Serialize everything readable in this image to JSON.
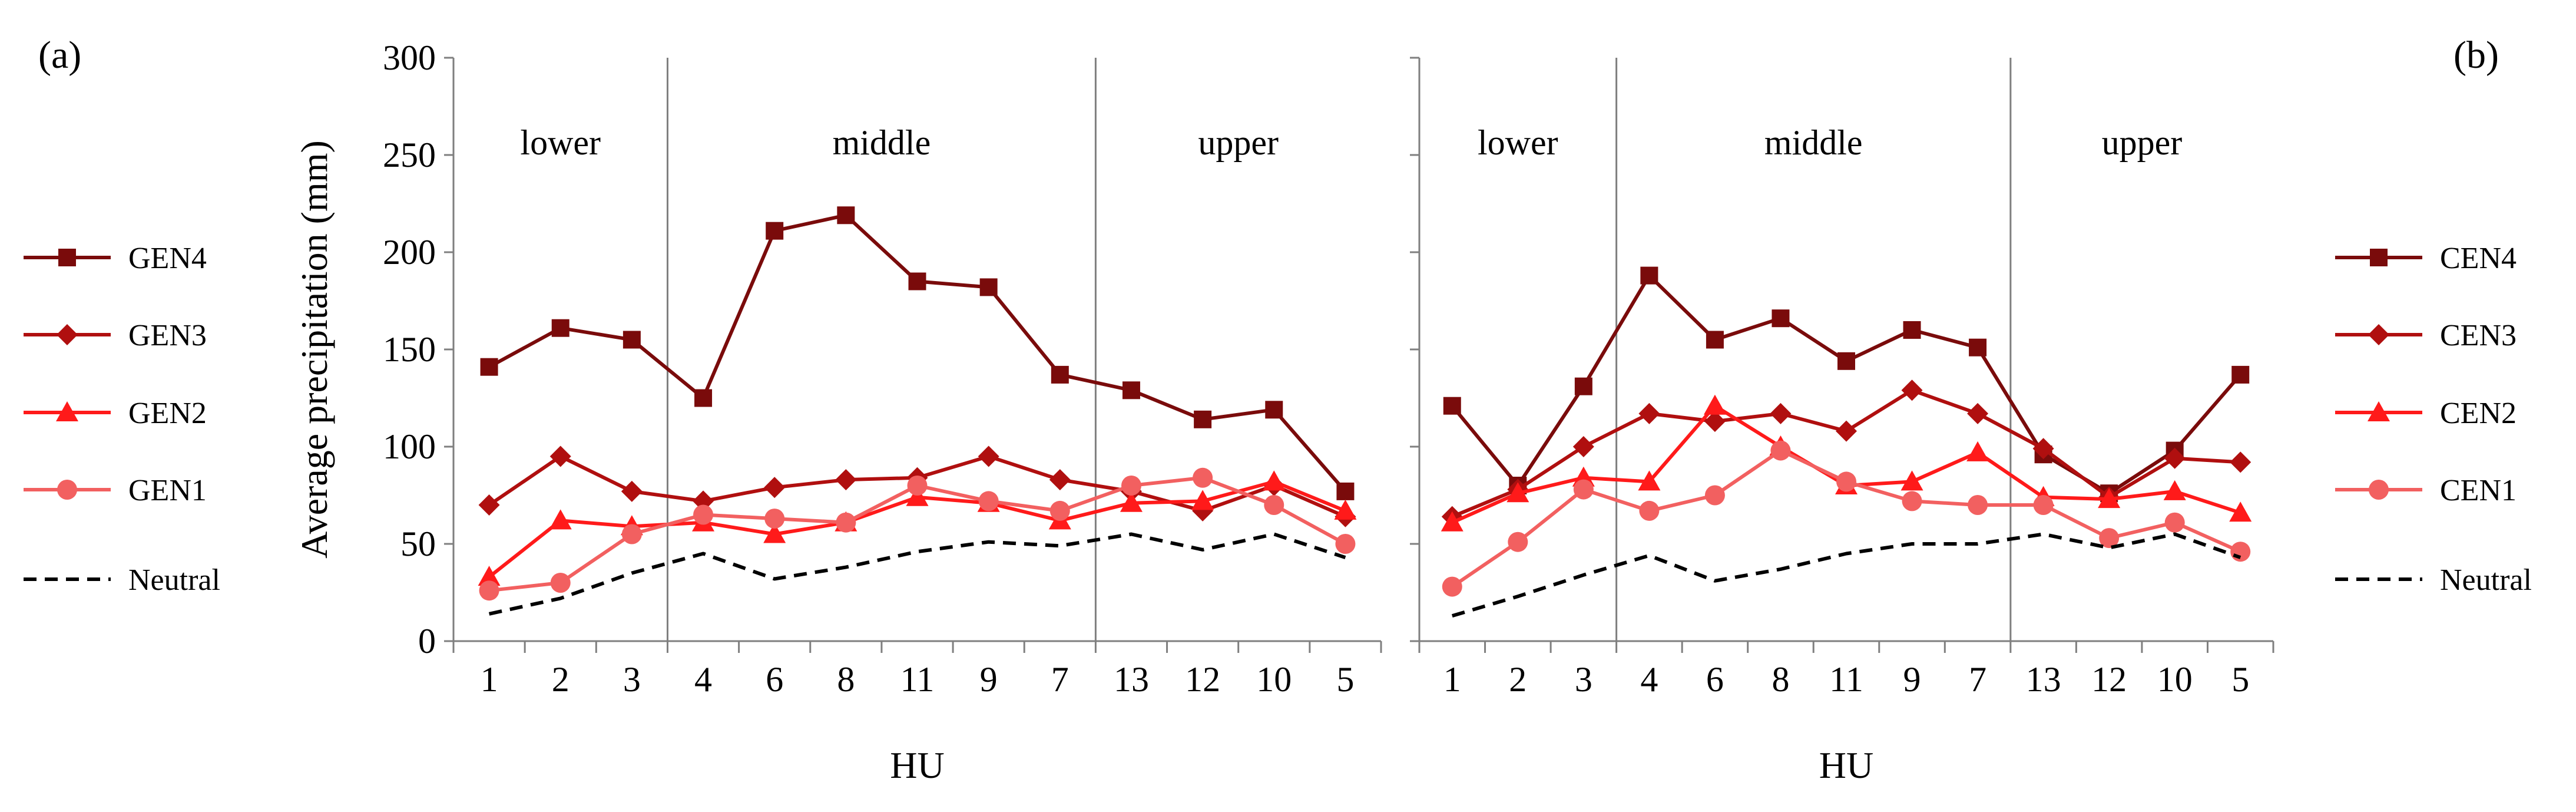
{
  "panels": [
    {
      "panel_label": "(a)",
      "region_labels": [
        "lower",
        "middle",
        "upper"
      ]
    },
    {
      "panel_label": "(b)",
      "region_labels": [
        "lower",
        "middle",
        "upper"
      ]
    }
  ],
  "colors": {
    "level4": "#7a0b0b",
    "level3": "#b00f0f",
    "level2": "#ff1a1a",
    "level1": "#f26060",
    "neutral": "#000000",
    "axis": "#7f7f7f"
  },
  "chart_data": [
    {
      "type": "line",
      "title": "",
      "xlabel": "HU",
      "ylabel": "Average precipitation (mm)",
      "ylim": [
        0,
        300
      ],
      "yticks": [
        "0",
        "50",
        "100",
        "150",
        "200",
        "250",
        "300"
      ],
      "categories": [
        "1",
        "2",
        "3",
        "4",
        "6",
        "8",
        "11",
        "9",
        "7",
        "13",
        "12",
        "10",
        "5"
      ],
      "region_boundaries_after_index": [
        2,
        8
      ],
      "legend_position": "left",
      "grid": false,
      "series": [
        {
          "name": "GEN4",
          "marker": "square",
          "color_key": "level4",
          "values": [
            141,
            161,
            155,
            125,
            211,
            219,
            185,
            182,
            137,
            129,
            114,
            119,
            77
          ]
        },
        {
          "name": "GEN3",
          "marker": "diamond",
          "color_key": "level3",
          "values": [
            70,
            95,
            77,
            72,
            79,
            83,
            84,
            95,
            83,
            77,
            67,
            80,
            64
          ]
        },
        {
          "name": "GEN2",
          "marker": "triangle",
          "color_key": "level2",
          "values": [
            33,
            62,
            59,
            61,
            55,
            61,
            74,
            71,
            62,
            71,
            72,
            82,
            67
          ]
        },
        {
          "name": "GEN1",
          "marker": "circle",
          "color_key": "level1",
          "values": [
            26,
            30,
            55,
            65,
            63,
            61,
            80,
            72,
            67,
            80,
            84,
            70,
            50
          ]
        },
        {
          "name": "Neutral",
          "marker": "none",
          "dashed": true,
          "color_key": "neutral",
          "values": [
            14,
            22,
            35,
            45,
            32,
            38,
            46,
            51,
            49,
            55,
            47,
            55,
            43
          ]
        }
      ]
    },
    {
      "type": "line",
      "title": "",
      "xlabel": "HU",
      "ylabel": "",
      "ylim": [
        0,
        300
      ],
      "yticks": [],
      "categories": [
        "1",
        "2",
        "3",
        "4",
        "6",
        "8",
        "11",
        "9",
        "7",
        "13",
        "12",
        "10",
        "5"
      ],
      "region_boundaries_after_index": [
        2,
        8
      ],
      "legend_position": "right",
      "grid": false,
      "series": [
        {
          "name": "CEN4",
          "marker": "square",
          "color_key": "level4",
          "values": [
            121,
            80,
            131,
            188,
            155,
            166,
            144,
            160,
            151,
            96,
            76,
            98,
            137
          ]
        },
        {
          "name": "CEN3",
          "marker": "diamond",
          "color_key": "level3",
          "values": [
            64,
            78,
            100,
            117,
            113,
            117,
            108,
            129,
            117,
            99,
            74,
            94,
            92
          ]
        },
        {
          "name": "CEN2",
          "marker": "triangle",
          "color_key": "level2",
          "values": [
            61,
            76,
            84,
            82,
            121,
            100,
            80,
            82,
            97,
            74,
            73,
            77,
            66
          ]
        },
        {
          "name": "CEN1",
          "marker": "circle",
          "color_key": "level1",
          "values": [
            28,
            51,
            78,
            67,
            75,
            98,
            82,
            72,
            70,
            70,
            53,
            61,
            46
          ]
        },
        {
          "name": "Neutral",
          "marker": "none",
          "dashed": true,
          "color_key": "neutral",
          "values": [
            13,
            23,
            34,
            44,
            31,
            37,
            45,
            50,
            50,
            55,
            48,
            55,
            43
          ]
        }
      ]
    }
  ]
}
